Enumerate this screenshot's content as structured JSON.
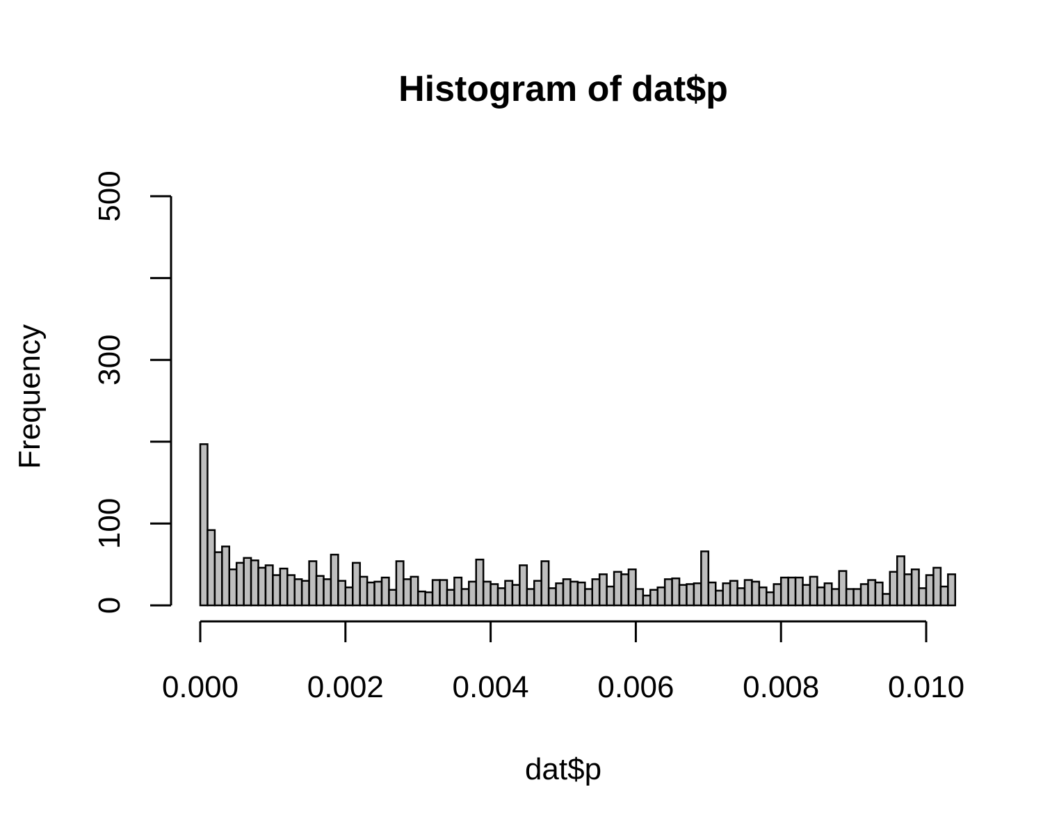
{
  "chart_data": {
    "type": "bar",
    "title": "Histogram of dat$p",
    "xlabel": "dat$p",
    "ylabel": "Frequency",
    "xlim": [
      0,
      0.0104
    ],
    "ylim": [
      0,
      500
    ],
    "bin_width": 0.0001,
    "x_ticks": [
      0.0,
      0.002,
      0.004,
      0.006,
      0.008,
      0.01
    ],
    "x_tick_labels": [
      "0.000",
      "0.002",
      "0.004",
      "0.006",
      "0.008",
      "0.010"
    ],
    "y_ticks": [
      0,
      100,
      200,
      300,
      400,
      500
    ],
    "y_tick_labels": [
      "0",
      "100",
      "",
      "300",
      "",
      "500"
    ],
    "bar_color": "#bebebe",
    "grid": false,
    "legend": "none",
    "values": [
      197,
      92,
      65,
      72,
      44,
      52,
      58,
      55,
      46,
      49,
      37,
      45,
      37,
      32,
      30,
      54,
      36,
      32,
      62,
      30,
      22,
      52,
      35,
      28,
      29,
      34,
      19,
      54,
      32,
      35,
      17,
      16,
      31,
      31,
      19,
      34,
      20,
      29,
      56,
      29,
      26,
      21,
      30,
      25,
      49,
      20,
      30,
      54,
      21,
      27,
      32,
      29,
      28,
      20,
      32,
      38,
      23,
      41,
      38,
      44,
      20,
      12,
      19,
      22,
      32,
      33,
      25,
      26,
      27,
      66,
      28,
      18,
      27,
      30,
      21,
      31,
      29,
      22,
      16,
      26,
      34,
      34,
      34,
      25,
      35,
      22,
      27,
      20,
      42,
      20,
      20,
      26,
      31,
      28,
      14,
      41,
      60,
      38,
      44,
      21,
      37,
      46,
      23,
      38
    ]
  }
}
